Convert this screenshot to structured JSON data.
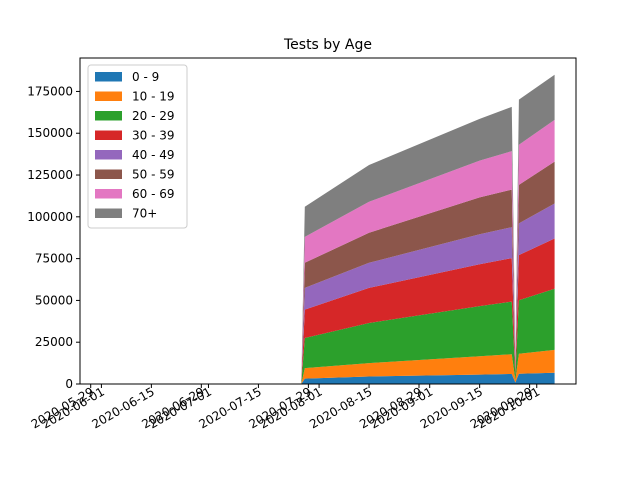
{
  "chart_data": {
    "type": "area",
    "title": "Tests by Age",
    "xlabel": "",
    "ylabel": "",
    "stacked": true,
    "grid": false,
    "legend_position": "upper-left",
    "xlim": [
      "2020-05-26",
      "2020-10-12"
    ],
    "ylim": [
      0,
      195000
    ],
    "y_ticks": [
      0,
      25000,
      50000,
      75000,
      100000,
      125000,
      150000,
      175000
    ],
    "x_ticks": [
      {
        "date": "2020-05-29",
        "label": "2020-05-29"
      },
      {
        "date": "2020-06-01",
        "label": "2020-06-01"
      },
      {
        "date": "2020-06-15",
        "label": "2020-06-15"
      },
      {
        "date": "2020-06-29",
        "label": "2020-06-29"
      },
      {
        "date": "2020-07-01",
        "label": "2020-07-01"
      },
      {
        "date": "2020-07-15",
        "label": "2020-07-15"
      },
      {
        "date": "2020-07-29",
        "label": "2020-07-29"
      },
      {
        "date": "2020-08-01",
        "label": "2020-08-01"
      },
      {
        "date": "2020-08-15",
        "label": "2020-08-15"
      },
      {
        "date": "2020-08-29",
        "label": "2020-08-29"
      },
      {
        "date": "2020-09-01",
        "label": "2020-09-01"
      },
      {
        "date": "2020-09-15",
        "label": "2020-09-15"
      },
      {
        "date": "2020-09-29",
        "label": "2020-09-29"
      },
      {
        "date": "2020-10-01",
        "label": "2020-10-01"
      }
    ],
    "x": [
      "2020-05-28",
      "2020-07-27",
      "2020-07-28",
      "2020-08-15",
      "2020-09-15",
      "2020-09-24",
      "2020-09-25",
      "2020-09-26",
      "2020-10-06"
    ],
    "series": [
      {
        "name": "0 - 9",
        "color": "#1f77b4",
        "values": [
          0,
          0,
          3200,
          4500,
          5600,
          6000,
          900,
          6100,
          6700
        ]
      },
      {
        "name": "10 - 19",
        "color": "#ff7f0e",
        "values": [
          0,
          0,
          6300,
          8000,
          11000,
          11800,
          1500,
          12000,
          13700
        ]
      },
      {
        "name": "20 - 29",
        "color": "#2ca02c",
        "values": [
          0,
          0,
          18000,
          24000,
          30000,
          31500,
          3000,
          32000,
          36600
        ]
      },
      {
        "name": "30 - 39",
        "color": "#d62728",
        "values": [
          0,
          0,
          17000,
          21000,
          25000,
          26000,
          2500,
          27000,
          30000
        ]
      },
      {
        "name": "40 - 49",
        "color": "#9467bd",
        "values": [
          0,
          0,
          13000,
          15000,
          18000,
          18500,
          1800,
          19000,
          21000
        ]
      },
      {
        "name": "50 - 59",
        "color": "#8c564b",
        "values": [
          0,
          0,
          15000,
          18000,
          22000,
          22500,
          2200,
          23000,
          25000
        ]
      },
      {
        "name": "60 - 69",
        "color": "#e377c2",
        "values": [
          0,
          0,
          15500,
          18500,
          22000,
          23000,
          2300,
          24000,
          25000
        ]
      },
      {
        "name": "70+",
        "color": "#7f7f7f",
        "values": [
          0,
          0,
          18000,
          22000,
          25000,
          26500,
          2700,
          27000,
          27000
        ]
      }
    ]
  }
}
